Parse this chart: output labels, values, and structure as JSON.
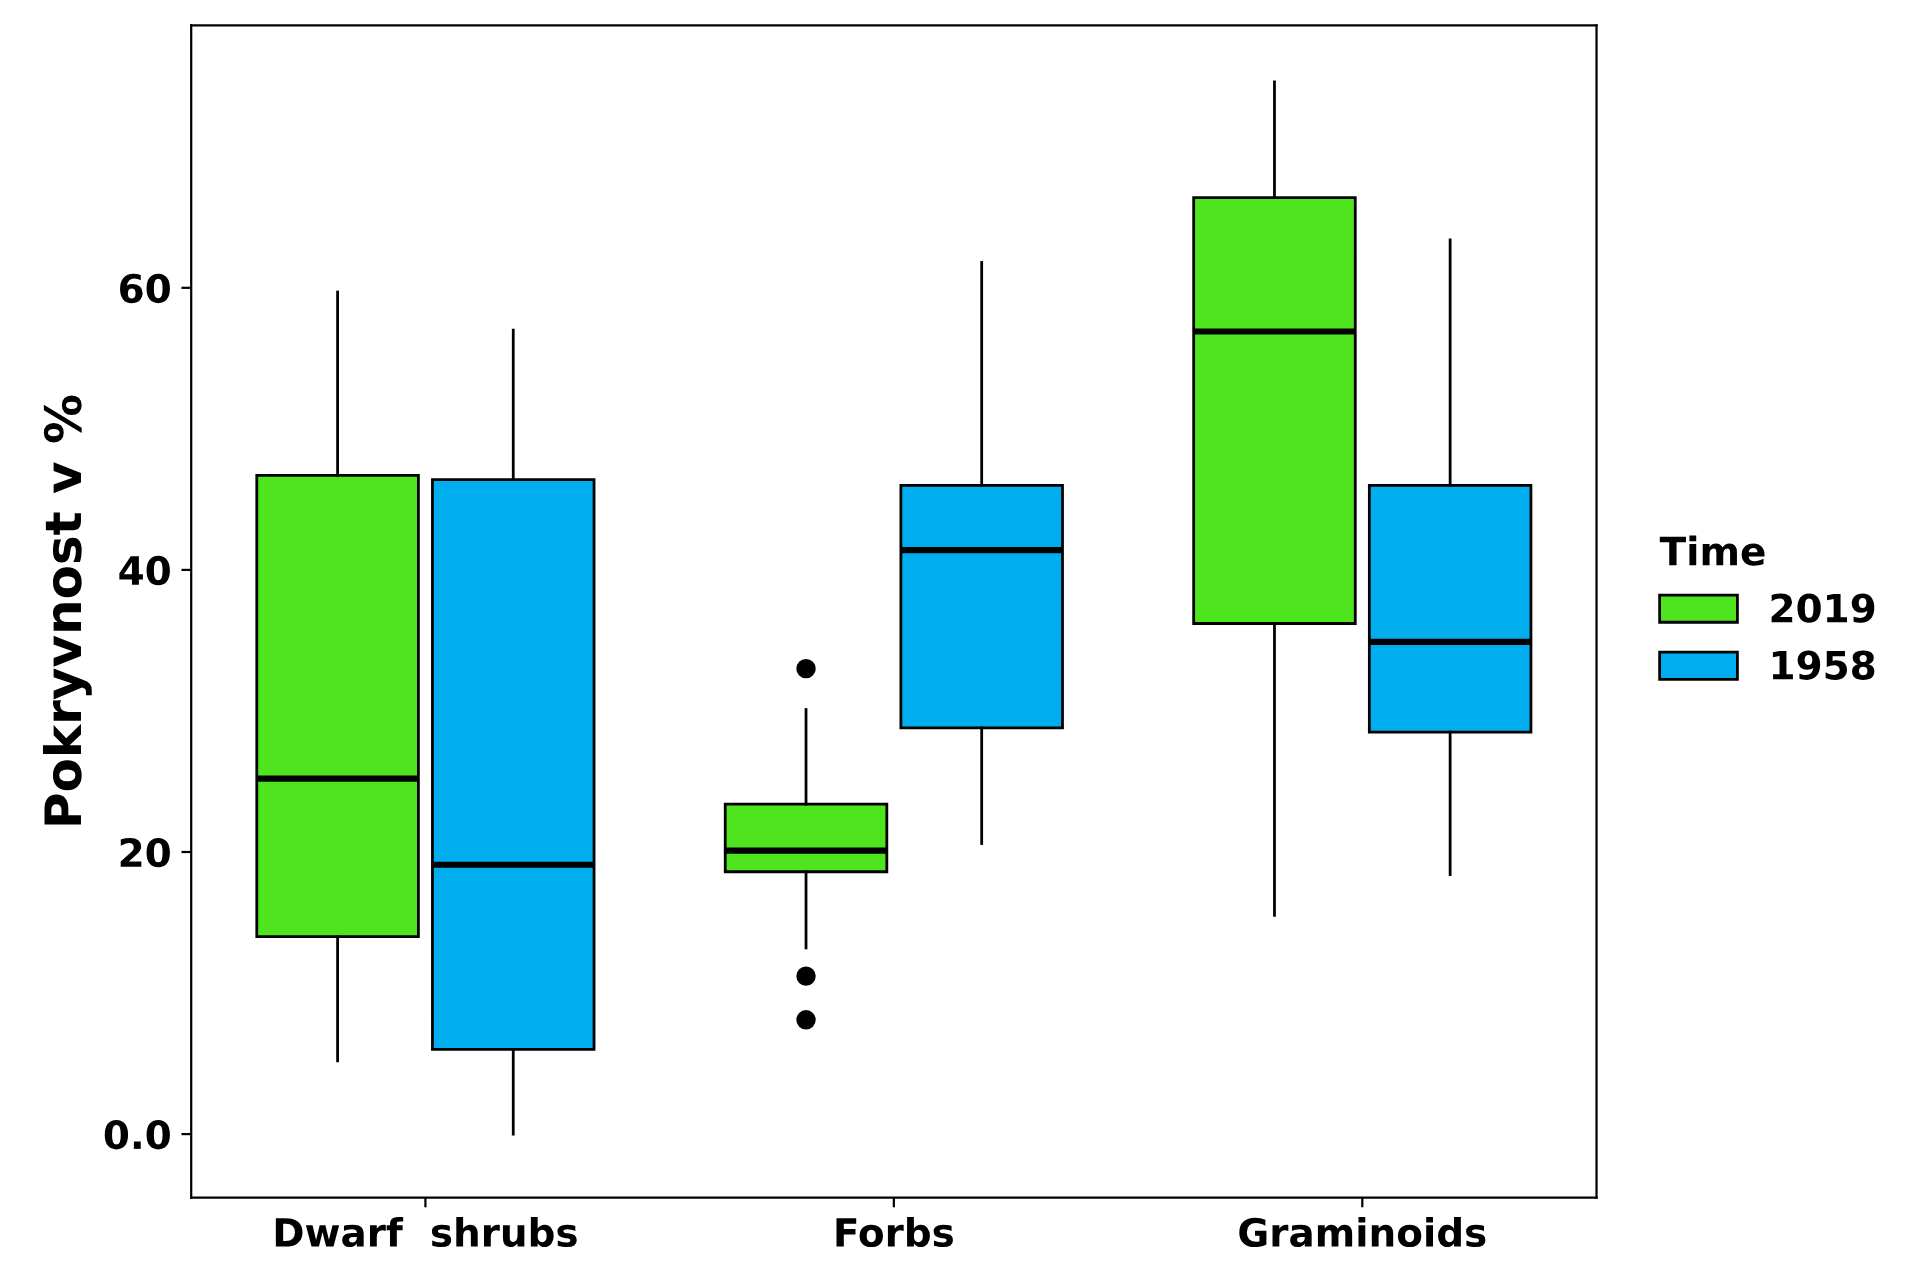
{
  "chart_data": {
    "type": "box",
    "ylabel": "Pokryvnost v %",
    "legend_title": "Time",
    "legend": "right",
    "grid": false,
    "categories": [
      "Dwarf  shrubs",
      "Forbs",
      "Graminoids"
    ],
    "ylim": [
      -4.5,
      78.6
    ],
    "yticks": [
      {
        "value": 0,
        "label": "0.0"
      },
      20,
      40,
      60
    ],
    "series": [
      {
        "name": "2019",
        "color": "#4ee51e",
        "boxes": [
          {
            "low": 5.2,
            "q1": 14.0,
            "median": 25.2,
            "q3": 46.7,
            "high": 59.7
          },
          {
            "low": 13.2,
            "q1": 18.6,
            "median": 20.1,
            "q3": 23.4,
            "high": 30.1,
            "outliers": [
              33.0,
              11.2,
              8.1
            ]
          },
          {
            "low": 15.5,
            "q1": 36.2,
            "median": 56.9,
            "q3": 66.4,
            "high": 74.6
          }
        ]
      },
      {
        "name": "1958",
        "color": "#00aeef",
        "boxes": [
          {
            "low": 0,
            "q1": 6.0,
            "median": 19.1,
            "q3": 46.4,
            "high": 57.0
          },
          {
            "low": 20.6,
            "q1": 28.8,
            "median": 41.4,
            "q3": 46.0,
            "high": 61.8
          },
          {
            "low": 18.4,
            "q1": 28.5,
            "median": 34.9,
            "q3": 46.0,
            "high": 63.4
          }
        ]
      }
    ]
  }
}
